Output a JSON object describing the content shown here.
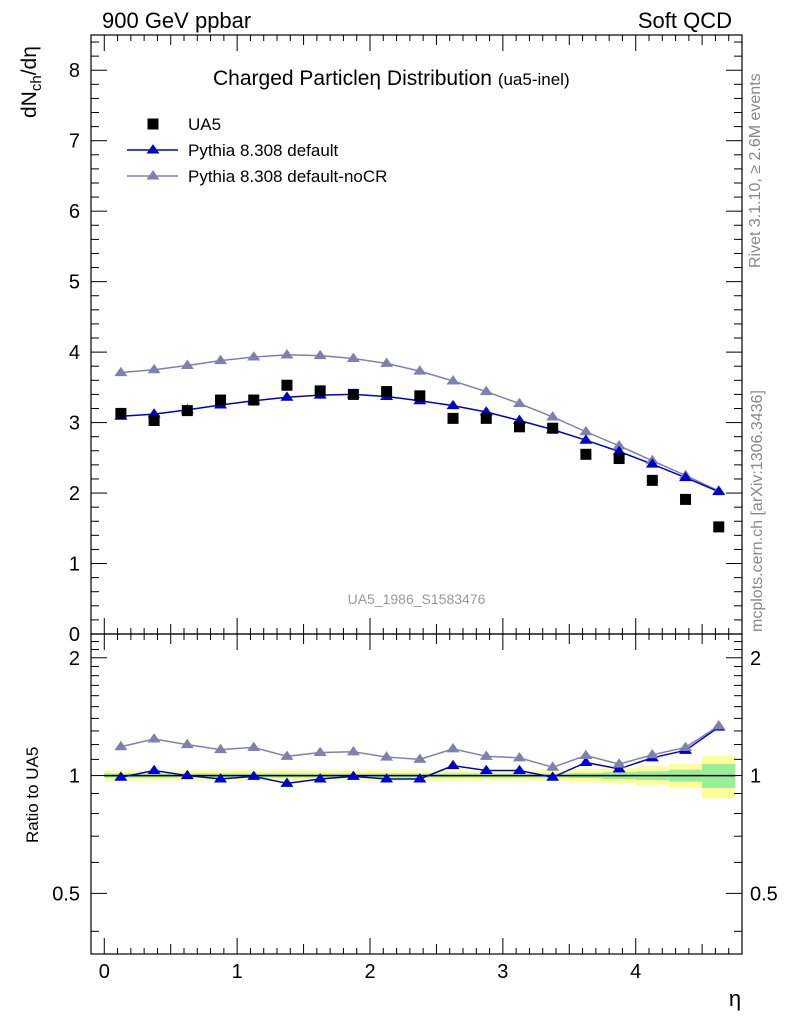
{
  "header": {
    "left": "900 GeV ppbar",
    "right": "Soft QCD"
  },
  "side_labels": {
    "rivet": "Rivet 3.1.10, ≥ 2.6M events",
    "mcplots": "mcplots.cern.ch [arXiv:1306.3436]"
  },
  "chart_data": [
    {
      "type": "scatter",
      "title": "Charged Particleη Distribution",
      "title_suffix": "(ua5-inel)",
      "ylabel": "dN_ch/dη",
      "watermark": "UA5_1986_S1583476",
      "xlim": [
        -0.1,
        4.8
      ],
      "ylim": [
        0,
        8.5
      ],
      "yticks": [
        1,
        2,
        3,
        4,
        5,
        6,
        7,
        8
      ],
      "ytick_labels": [
        "1",
        "2",
        "3",
        "4",
        "5",
        "6",
        "7",
        "8"
      ],
      "legend_position": "top-left",
      "x": [
        0.125,
        0.375,
        0.625,
        0.875,
        1.125,
        1.375,
        1.625,
        1.875,
        2.125,
        2.375,
        2.625,
        2.875,
        3.125,
        3.375,
        3.625,
        3.875,
        4.125,
        4.375,
        4.625
      ],
      "series": [
        {
          "name": "UA5",
          "marker": "square",
          "color": "#000000",
          "values": [
            3.13,
            3.03,
            3.17,
            3.32,
            3.32,
            3.53,
            3.45,
            3.4,
            3.44,
            3.38,
            3.06,
            3.06,
            2.94,
            2.92,
            2.55,
            2.49,
            2.18,
            1.91,
            1.52
          ]
        },
        {
          "name": "Pythia 8.308 default",
          "marker": "triangle",
          "color": "#0000cc",
          "values": [
            3.09,
            3.12,
            3.18,
            3.25,
            3.31,
            3.36,
            3.39,
            3.4,
            3.37,
            3.31,
            3.24,
            3.15,
            3.03,
            2.9,
            2.75,
            2.59,
            2.41,
            2.22,
            2.02
          ]
        },
        {
          "name": "Pythia 8.308 default-noCR",
          "marker": "triangle",
          "color": "#8080b0",
          "values": [
            3.71,
            3.75,
            3.81,
            3.88,
            3.93,
            3.96,
            3.95,
            3.91,
            3.84,
            3.73,
            3.59,
            3.44,
            3.27,
            3.08,
            2.87,
            2.67,
            2.46,
            2.25,
            2.03
          ]
        }
      ]
    },
    {
      "type": "scatter",
      "xlabel": "η",
      "ylabel": "Ratio to UA5",
      "xlim": [
        -0.1,
        4.8
      ],
      "ylim": [
        0.35,
        2.3
      ],
      "xticks": [
        0,
        1,
        2,
        3,
        4
      ],
      "xtick_labels": [
        "0",
        "1",
        "2",
        "3",
        "4"
      ],
      "yticks": [
        0.5,
        1,
        2
      ],
      "ytick_labels": [
        "0.5",
        "1",
        "2"
      ],
      "bands": {
        "yellow_halfwidth": [
          0.03,
          0.03,
          0.03,
          0.03,
          0.03,
          0.03,
          0.03,
          0.03,
          0.03,
          0.03,
          0.03,
          0.03,
          0.03,
          0.03,
          0.04,
          0.045,
          0.055,
          0.07,
          0.125
        ],
        "green_halfwidth": [
          0.012,
          0.012,
          0.012,
          0.012,
          0.012,
          0.012,
          0.012,
          0.012,
          0.012,
          0.012,
          0.012,
          0.012,
          0.012,
          0.012,
          0.015,
          0.02,
          0.025,
          0.035,
          0.07
        ]
      },
      "series": [
        {
          "name": "Pythia 8.308 default",
          "color": "#0000cc",
          "values": [
            0.99,
            1.03,
            1.0,
            0.98,
            0.995,
            0.955,
            0.98,
            0.995,
            0.98,
            0.98,
            1.06,
            1.03,
            1.03,
            0.99,
            1.08,
            1.04,
            1.11,
            1.16,
            1.33
          ]
        },
        {
          "name": "Pythia 8.308 default-noCR",
          "color": "#8080b0",
          "values": [
            1.185,
            1.24,
            1.2,
            1.165,
            1.18,
            1.12,
            1.145,
            1.15,
            1.115,
            1.1,
            1.17,
            1.12,
            1.11,
            1.05,
            1.125,
            1.07,
            1.13,
            1.18,
            1.34
          ]
        }
      ]
    }
  ]
}
